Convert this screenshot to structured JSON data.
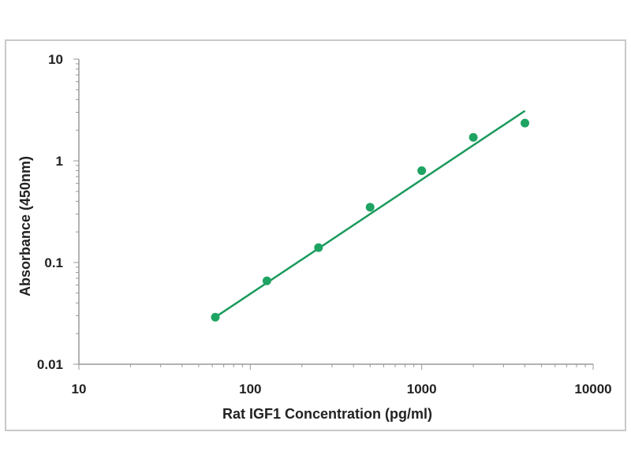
{
  "chart_data": {
    "type": "scatter",
    "title": "",
    "xlabel": "Rat IGF1 Concentration (pg/ml)",
    "ylabel": "Absorbance (450nm)",
    "xscale": "log",
    "yscale": "log",
    "xlim": [
      10,
      10000
    ],
    "ylim": [
      0.01,
      10
    ],
    "x_ticks": [
      "10",
      "100",
      "1000",
      "10000"
    ],
    "y_ticks": [
      "0.01",
      "0.1",
      "1",
      "10"
    ],
    "grid": false,
    "legend": "none",
    "series": [
      {
        "points": [
          {
            "x": 62.5,
            "y": 0.029
          },
          {
            "x": 125,
            "y": 0.066
          },
          {
            "x": 250,
            "y": 0.14
          },
          {
            "x": 500,
            "y": 0.35
          },
          {
            "x": 1000,
            "y": 0.8
          },
          {
            "x": 2000,
            "y": 1.7
          },
          {
            "x": 4000,
            "y": 2.35
          }
        ],
        "color": "#1ea462"
      }
    ],
    "fit_line": {
      "type": "power",
      "color": "#1a9a5c",
      "points": [
        {
          "x": 62.5,
          "y": 0.029
        },
        {
          "x": 4000,
          "y": 3.1
        }
      ]
    }
  }
}
